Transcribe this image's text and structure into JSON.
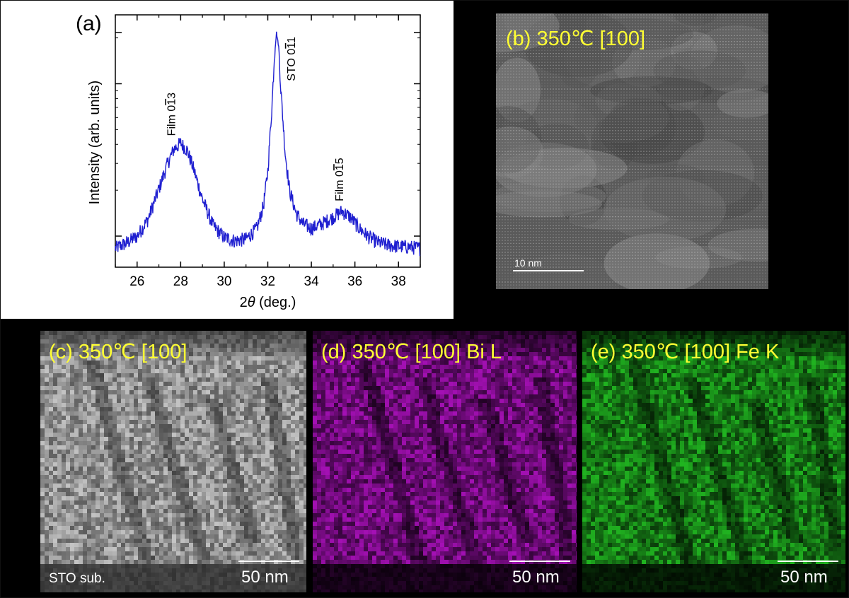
{
  "figure": {
    "panel_a": {
      "label": "(a)",
      "xlabel_prefix": "2",
      "xlabel_symbol": "θ",
      "xlabel_suffix": " (deg.)",
      "ylabel": "Intensity (arb. units)",
      "annotations": [
        {
          "text": "Film 013",
          "overbar_digit": "1",
          "x": 28.0
        },
        {
          "text": "STO 011",
          "overbar_digit": "1",
          "x": 32.4
        },
        {
          "text": "Film 015",
          "overbar_digit": "1",
          "x": 35.4
        }
      ],
      "annotation_parts": {
        "film013": {
          "pre": "Film 0",
          "bar": "1",
          "post": "3"
        },
        "sto011": {
          "pre": "STO 0",
          "bar": "1",
          "post": "1"
        },
        "film015": {
          "pre": "Film 0",
          "bar": "1",
          "post": "5"
        }
      },
      "xticks": [
        "26",
        "28",
        "30",
        "32",
        "34",
        "36",
        "38"
      ],
      "line_color": "#1f1fd0"
    },
    "panel_b": {
      "label": "(b) 350℃ [100]",
      "scale": "10 nm",
      "axis": "c"
    },
    "panel_c": {
      "label": "(c) 350℃ [100]",
      "scale": "50 nm",
      "substrate": "STO sub.",
      "axis": "c"
    },
    "panel_d": {
      "label": "(d) 350℃ [100]  Bi L",
      "scale": "50 nm"
    },
    "panel_e": {
      "label": "(e) 350℃ [100]  Fe K",
      "scale": "50 nm"
    },
    "colors": {
      "label_yellow": "#ffff33",
      "bi_map": "#a000b0",
      "fe_map": "#20c020"
    }
  },
  "chart_data": {
    "type": "line",
    "title": "",
    "xlabel": "2θ (deg.)",
    "ylabel": "Intensity (arb. units)",
    "xlim": [
      25,
      39
    ],
    "yscale": "log",
    "grid": false,
    "series": [
      {
        "x": [
          25.0,
          25.5,
          26.0,
          26.5,
          27.0,
          27.4,
          27.7,
          28.0,
          28.3,
          28.6,
          29.0,
          29.5,
          30.0,
          30.5,
          31.0,
          31.5,
          31.8,
          32.0,
          32.2,
          32.3,
          32.4,
          32.5,
          32.6,
          32.8,
          33.0,
          33.3,
          33.6,
          34.0,
          34.5,
          35.0,
          35.4,
          35.8,
          36.2,
          36.6,
          37.0,
          37.5,
          38.0,
          38.5,
          39.0
        ],
        "y": [
          1.0,
          1.08,
          1.2,
          1.55,
          2.45,
          3.6,
          4.5,
          4.9,
          4.4,
          3.3,
          2.1,
          1.4,
          1.18,
          1.12,
          1.15,
          1.35,
          1.9,
          3.2,
          9.0,
          18.0,
          26.0,
          21.0,
          11.0,
          4.2,
          2.4,
          1.7,
          1.45,
          1.35,
          1.45,
          1.6,
          1.75,
          1.6,
          1.35,
          1.2,
          1.1,
          1.05,
          1.03,
          1.02,
          1.0
        ]
      }
    ]
  }
}
